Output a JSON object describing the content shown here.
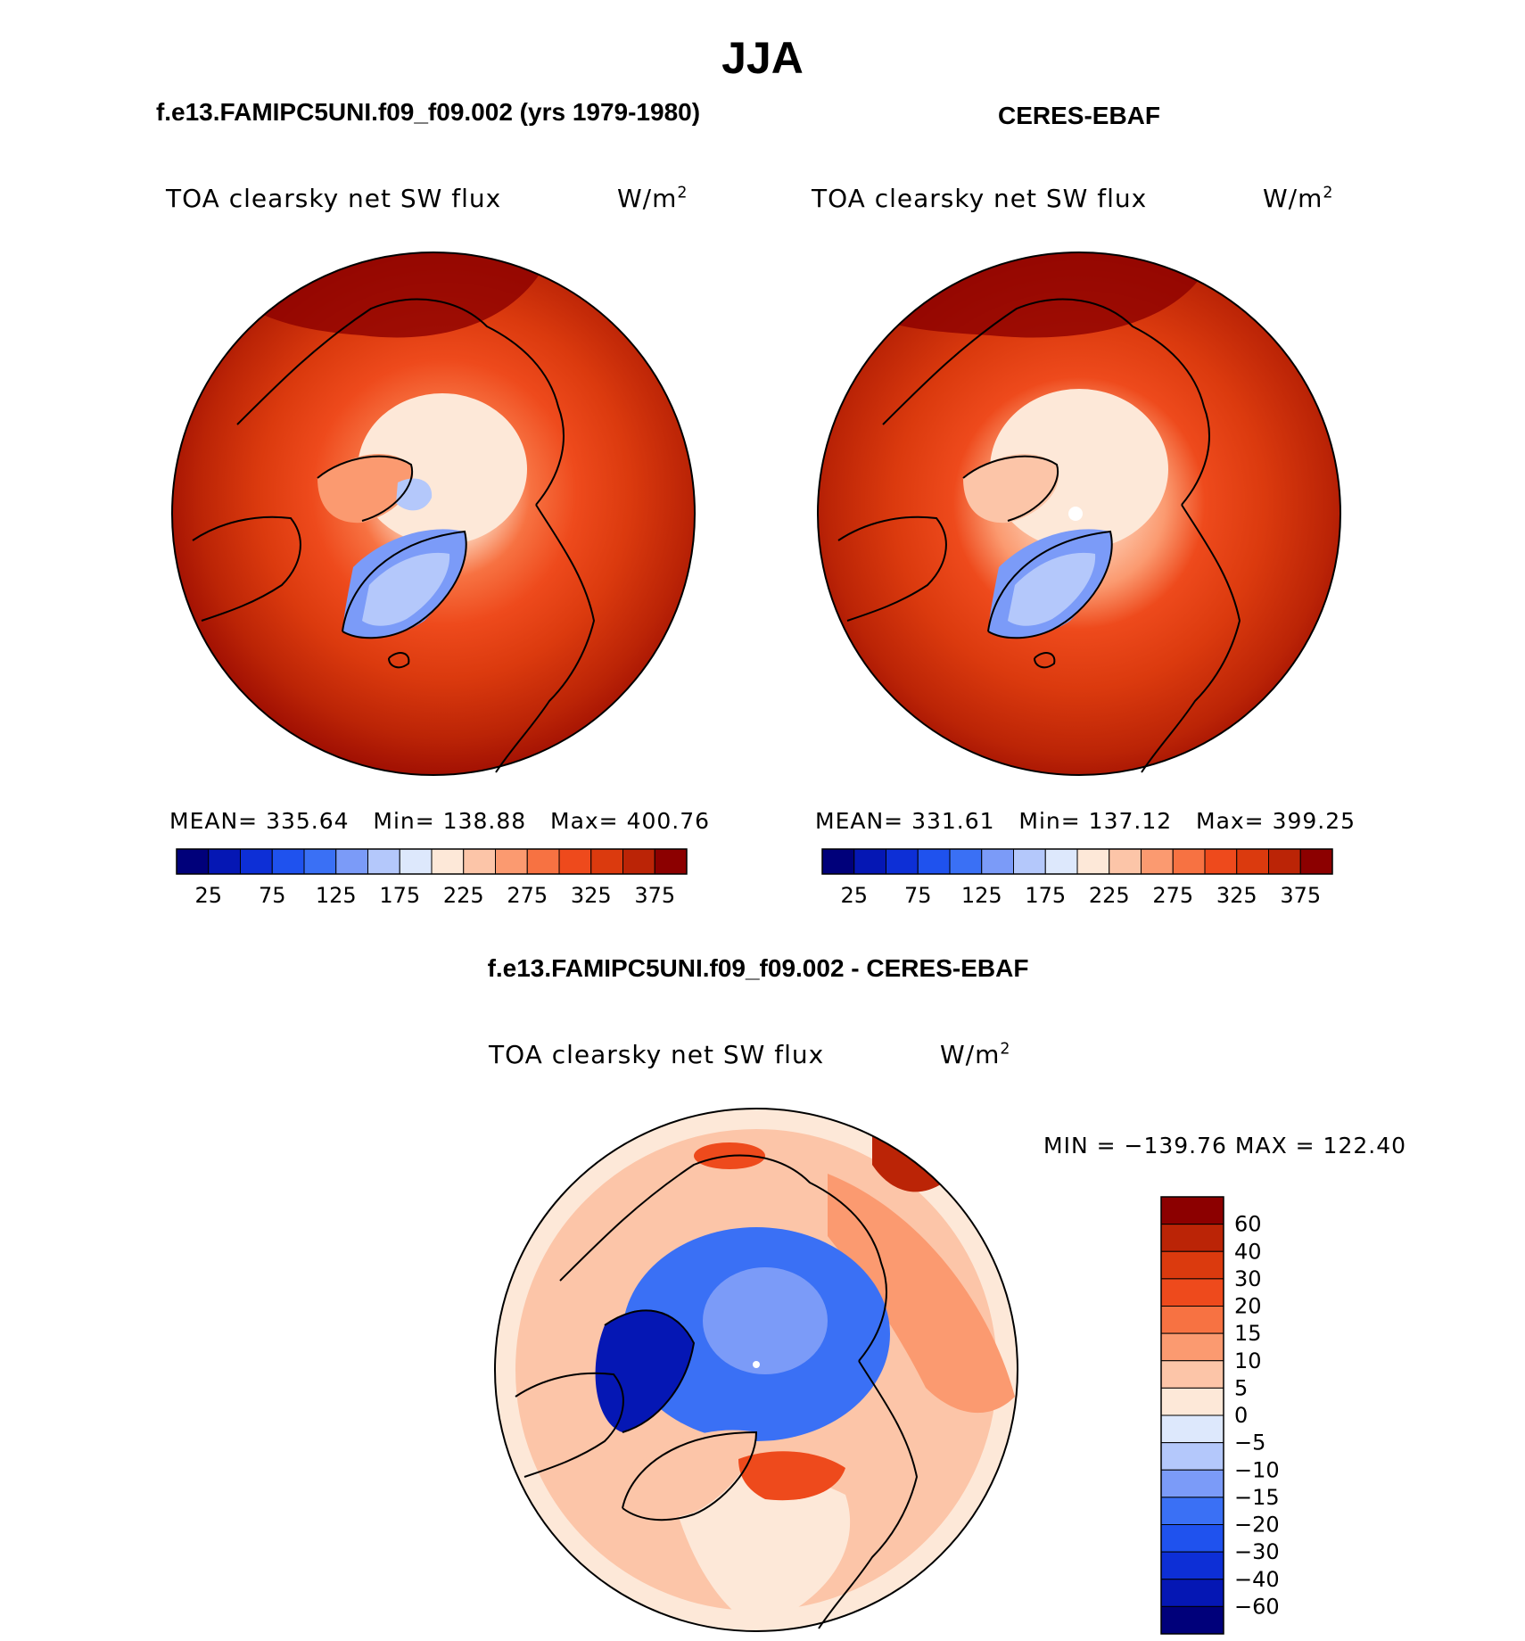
{
  "page": {
    "season": "JJA",
    "titles": {
      "left": "f.e13.FAMIPC5UNI.f09_f09.002 (yrs 1979-1980)",
      "right": "CERES-EBAF",
      "bottom": "f.e13.FAMIPC5UNI.f09_f09.002 - CERES-EBAF"
    }
  },
  "colors": {
    "main_scale": [
      "#00007a",
      "#0517b4",
      "#0d2fd6",
      "#1f52ee",
      "#3a70f5",
      "#7b9bf8",
      "#b4c8fb",
      "#dde8fc",
      "#fde8d8",
      "#fcc5a8",
      "#fb9a70",
      "#f77242",
      "#ee4a1c",
      "#db3a0e",
      "#bb2406",
      "#8c0000"
    ],
    "diff_scale": [
      "#00007a",
      "#0517b4",
      "#0d2fd6",
      "#1f52ee",
      "#3a70f5",
      "#7b9bf8",
      "#b4c8fb",
      "#dde8fc",
      "#fde8d8",
      "#fcc5a8",
      "#fb9a70",
      "#f77242",
      "#ee4a1c",
      "#db3a0e",
      "#bb2406",
      "#8c0000"
    ]
  },
  "chart_data": [
    {
      "type": "heatmap",
      "projection": "north-polar-stereographic",
      "title": "f.e13.FAMIPC5UNI.f09_f09.002 (yrs 1979-1980)",
      "variable": "TOA clearsky net SW flux",
      "units_base": "W/m",
      "units_exp": "2",
      "stats": {
        "mean_label": "MEAN=",
        "mean": "335.64",
        "min_label": "Min=",
        "min": "138.88",
        "max_label": "Max=",
        "max": "400.76"
      },
      "colorbar": {
        "orientation": "horizontal",
        "tick_labels": [
          "25",
          "75",
          "125",
          "175",
          "225",
          "275",
          "325",
          "375"
        ]
      }
    },
    {
      "type": "heatmap",
      "projection": "north-polar-stereographic",
      "title": "CERES-EBAF",
      "variable": "TOA clearsky net SW flux",
      "units_base": "W/m",
      "units_exp": "2",
      "stats": {
        "mean_label": "MEAN=",
        "mean": "331.61",
        "min_label": "Min=",
        "min": "137.12",
        "max_label": "Max=",
        "max": "399.25"
      },
      "colorbar": {
        "orientation": "horizontal",
        "tick_labels": [
          "25",
          "75",
          "125",
          "175",
          "225",
          "275",
          "325",
          "375"
        ]
      }
    },
    {
      "type": "heatmap",
      "projection": "north-polar-stereographic",
      "title": "f.e13.FAMIPC5UNI.f09_f09.002 - CERES-EBAF",
      "variable": "TOA clearsky net SW flux",
      "units_base": "W/m",
      "units_exp": "2",
      "stats": {
        "min_label": "MIN =",
        "min": "−139.76",
        "max_label": "MAX =",
        "max": "122.40"
      },
      "colorbar": {
        "orientation": "vertical",
        "tick_labels": [
          "60",
          "40",
          "30",
          "20",
          "15",
          "10",
          "5",
          "0",
          "−5",
          "−10",
          "−15",
          "−20",
          "−30",
          "−40",
          "−60"
        ]
      }
    }
  ]
}
